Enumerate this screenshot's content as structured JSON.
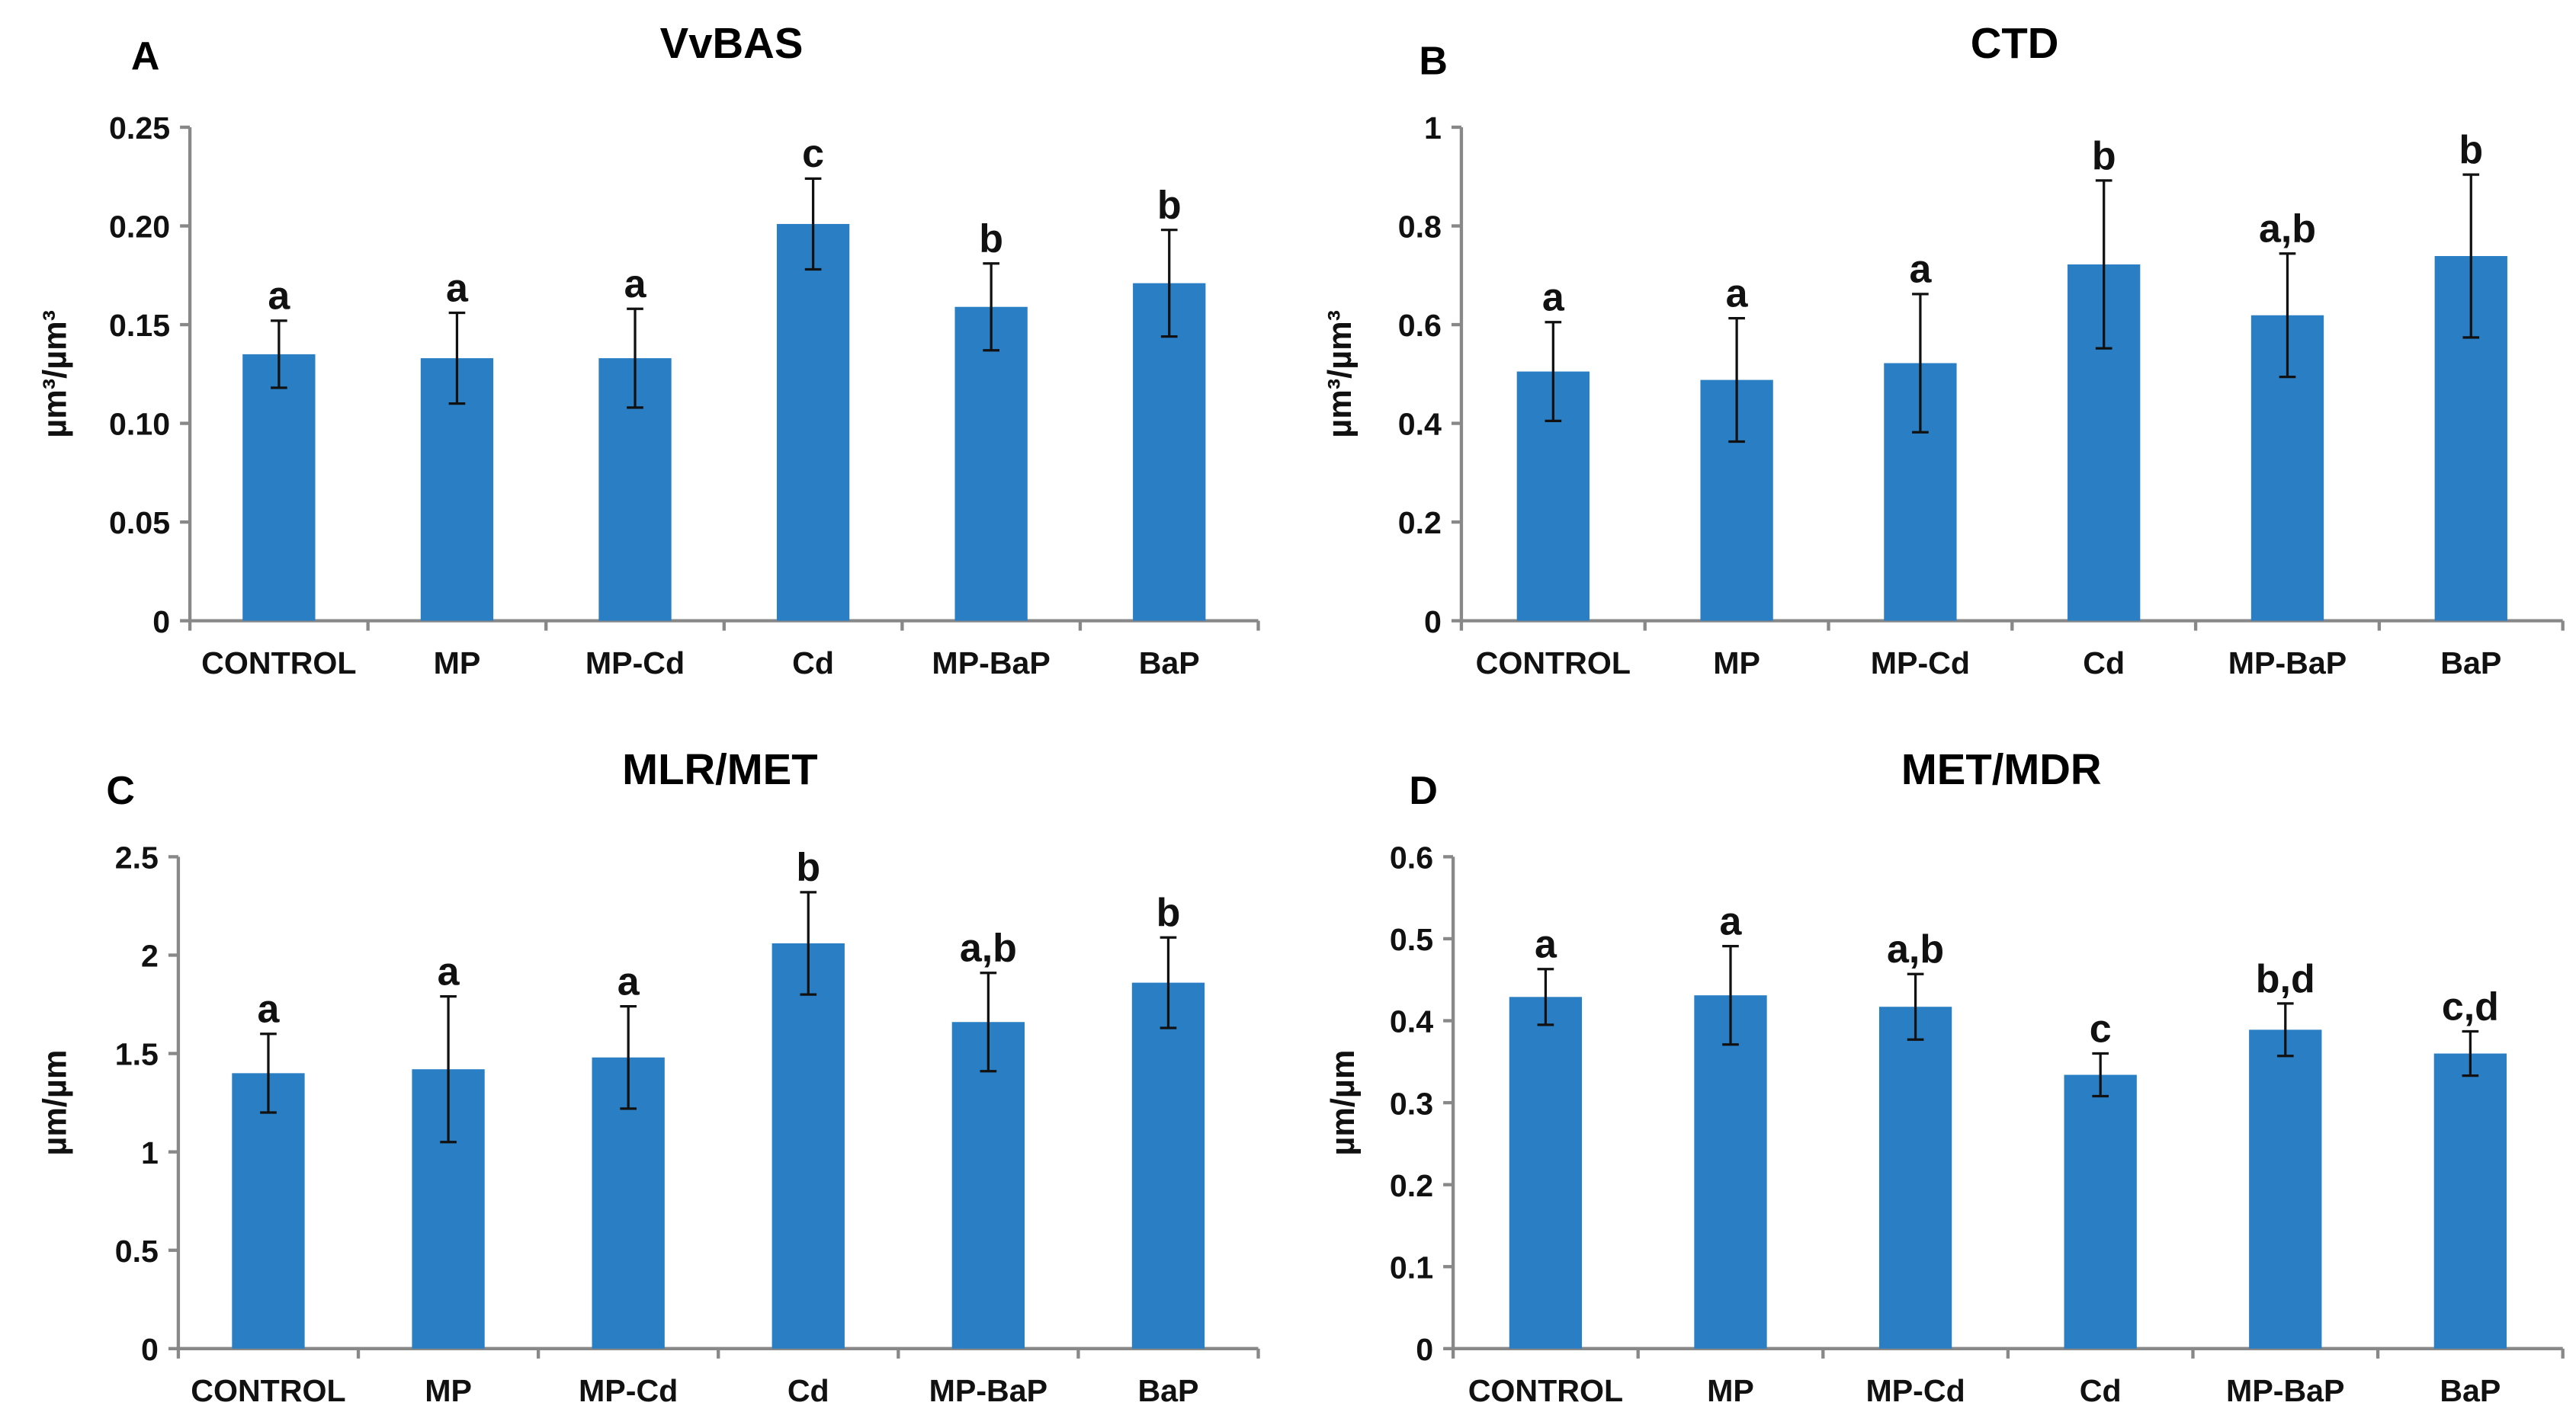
{
  "bar_color": "#2a7fc4",
  "chart_data": [
    {
      "type": "bar",
      "panel": "A",
      "title": "VvBAS",
      "ylabel": "µm³/µm³",
      "ylim": [
        0,
        0.25
      ],
      "yticks": [
        "0",
        "0.05",
        "0.10",
        "0.15",
        "0.20",
        "0.25"
      ],
      "categories": [
        "CONTROL",
        "MP",
        "MP-Cd",
        "Cd",
        "MP-BaP",
        "BaP"
      ],
      "values": [
        0.135,
        0.133,
        0.133,
        0.201,
        0.159,
        0.171
      ],
      "errors": [
        0.017,
        0.023,
        0.025,
        0.023,
        0.022,
        0.027
      ],
      "labels": [
        "a",
        "a",
        "a",
        "c",
        "b",
        "b"
      ]
    },
    {
      "type": "bar",
      "panel": "B",
      "title": "CTD",
      "ylabel": "µm³/µm³",
      "ylim": [
        0,
        1
      ],
      "yticks": [
        "0",
        "0.2",
        "0.4",
        "0.6",
        "0.8",
        "1"
      ],
      "categories": [
        "CONTROL",
        "MP",
        "MP-Cd",
        "Cd",
        "MP-BaP",
        "BaP"
      ],
      "values": [
        0.505,
        0.488,
        0.522,
        0.722,
        0.619,
        0.739
      ],
      "errors": [
        0.1,
        0.125,
        0.14,
        0.17,
        0.125,
        0.165
      ],
      "labels": [
        "a",
        "a",
        "a",
        "b",
        "a,b",
        "b"
      ]
    },
    {
      "type": "bar",
      "panel": "C",
      "title": "MLR/MET",
      "ylabel": "µm/µm",
      "ylim": [
        0,
        2.5
      ],
      "yticks": [
        "0",
        "0.5",
        "1",
        "1.5",
        "2",
        "2.5"
      ],
      "categories": [
        "CONTROL",
        "MP",
        "MP-Cd",
        "Cd",
        "MP-BaP",
        "BaP"
      ],
      "values": [
        1.4,
        1.42,
        1.48,
        2.06,
        1.66,
        1.86
      ],
      "errors": [
        0.2,
        0.37,
        0.26,
        0.26,
        0.25,
        0.23
      ],
      "labels": [
        "a",
        "a",
        "a",
        "b",
        "a,b",
        "b"
      ]
    },
    {
      "type": "bar",
      "panel": "D",
      "title": "MET/MDR",
      "ylabel": "µm/µm",
      "ylim": [
        0,
        0.6
      ],
      "yticks": [
        "0",
        "0.1",
        "0.2",
        "0.3",
        "0.4",
        "0.5",
        "0.6"
      ],
      "categories": [
        "CONTROL",
        "MP",
        "MP-Cd",
        "Cd",
        "MP-BaP",
        "BaP"
      ],
      "values": [
        0.429,
        0.431,
        0.417,
        0.334,
        0.389,
        0.36
      ],
      "errors": [
        0.034,
        0.06,
        0.04,
        0.026,
        0.032,
        0.027
      ],
      "labels": [
        "a",
        "a",
        "a,b",
        "c",
        "b,d",
        "c,d"
      ]
    }
  ]
}
